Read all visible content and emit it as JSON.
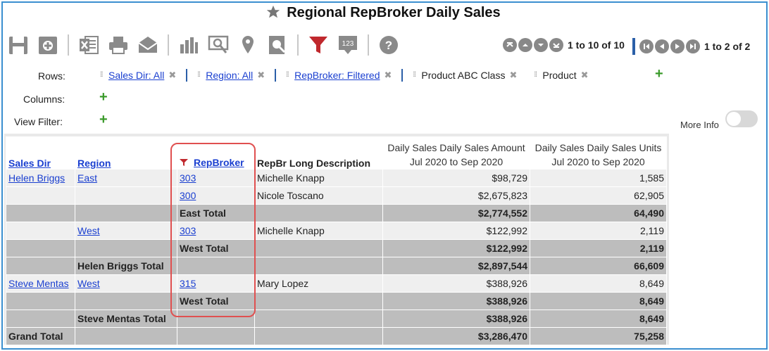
{
  "title": "Regional RepBroker Daily Sales",
  "toolbar": {
    "icons": [
      "save-icon",
      "save-as-icon",
      "excel-icon",
      "print-icon",
      "email-icon",
      "chart-icon",
      "drilldown-icon",
      "map-pin-icon",
      "search-report-icon",
      "filter-icon",
      "number-format-icon",
      "help-icon"
    ]
  },
  "pager_rows": {
    "text": "1 to 10 of 10"
  },
  "pager_cols": {
    "text": "1 to 2 of 2"
  },
  "labels": {
    "rows": "Rows:",
    "columns": "Columns:",
    "view_filter": "View Filter:",
    "more_info": "More Info"
  },
  "row_chips": [
    {
      "label": "Sales Dir: All"
    },
    {
      "label": "Region: All"
    },
    {
      "label": "RepBroker: Filtered"
    },
    {
      "label": "Product ABC Class"
    },
    {
      "label": "Product"
    }
  ],
  "table": {
    "headers": {
      "sales_dir": "Sales Dir",
      "region": "Region",
      "repbroker": "RepBroker",
      "desc": "RepBr Long Description",
      "amount_l1": "Daily Sales Daily Sales Amount",
      "amount_l2": "Jul 2020 to Sep 2020",
      "units_l1": "Daily Sales Daily Sales Units",
      "units_l2": "Jul 2020 to Sep 2020"
    },
    "rows": [
      {
        "sales_dir": "Helen Briggs",
        "region": "East",
        "rep": "303",
        "desc": "Michelle Knapp",
        "amount": "$98,729",
        "units": "1,585"
      },
      {
        "sales_dir": "",
        "region": "",
        "rep": "300",
        "desc": "Nicole Toscano",
        "amount": "$2,675,823",
        "units": "62,905"
      },
      {
        "sales_dir": "",
        "region": "",
        "rep": "East Total",
        "desc": "",
        "amount": "$2,774,552",
        "units": "64,490"
      },
      {
        "sales_dir": "",
        "region": "West",
        "rep": "303",
        "desc": "Michelle Knapp",
        "amount": "$122,992",
        "units": "2,119"
      },
      {
        "sales_dir": "",
        "region": "",
        "rep": "West Total",
        "desc": "",
        "amount": "$122,992",
        "units": "2,119"
      },
      {
        "sales_dir": "",
        "region": "Helen Briggs Total",
        "rep": "",
        "desc": "",
        "amount": "$2,897,544",
        "units": "66,609"
      },
      {
        "sales_dir": "Steve Mentas",
        "region": "West",
        "rep": "315",
        "desc": "Mary Lopez",
        "amount": "$388,926",
        "units": "8,649"
      },
      {
        "sales_dir": "",
        "region": "",
        "rep": "West Total",
        "desc": "",
        "amount": "$388,926",
        "units": "8,649"
      },
      {
        "sales_dir": "",
        "region": "Steve Mentas Total",
        "rep": "",
        "desc": "",
        "amount": "$388,926",
        "units": "8,649"
      },
      {
        "sales_dir": "Grand Total",
        "region": "",
        "rep": "",
        "desc": "",
        "amount": "$3,286,470",
        "units": "75,258"
      }
    ]
  },
  "colors": {
    "accent_blue": "#2b5fa8",
    "filter_red": "#c0282d",
    "highlight_box": "#e05050",
    "plus_green": "#3a9a2a"
  }
}
